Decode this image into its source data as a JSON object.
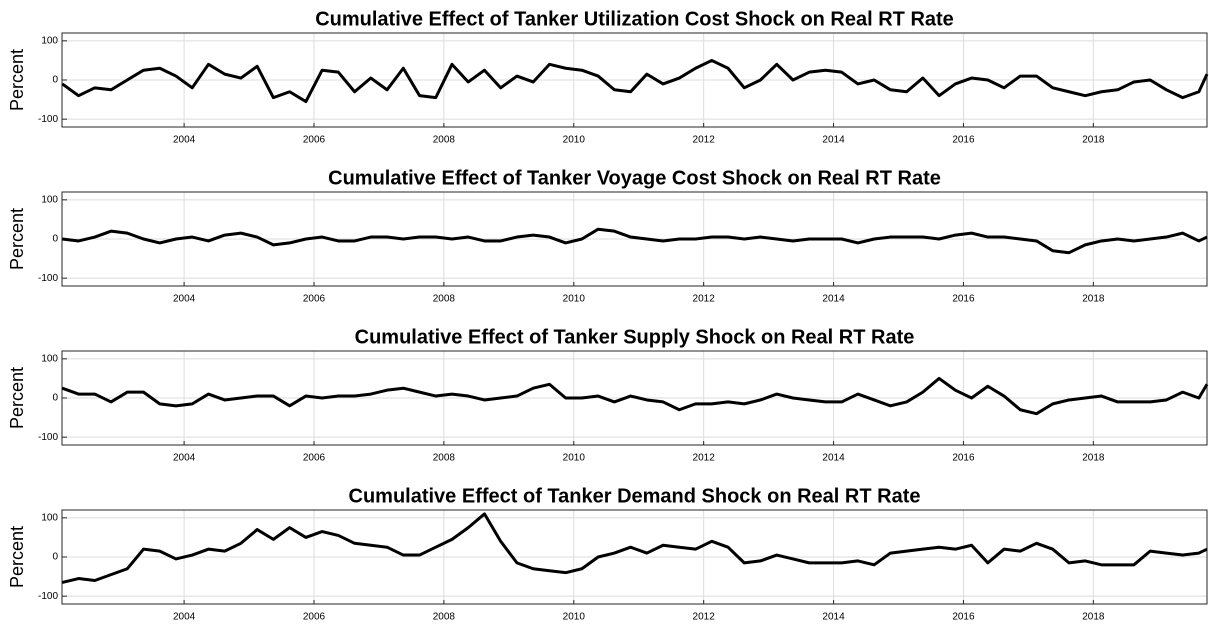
{
  "chart_data": [
    {
      "type": "line",
      "title": "Cumulative Effect of Tanker Utilization Cost Shock on Real RT Rate",
      "ylabel": "Percent",
      "x": [
        2002.125,
        2002.375,
        2002.625,
        2002.875,
        2003.125,
        2003.375,
        2003.625,
        2003.875,
        2004.125,
        2004.375,
        2004.625,
        2004.875,
        2005.125,
        2005.375,
        2005.625,
        2005.875,
        2006.125,
        2006.375,
        2006.625,
        2006.875,
        2007.125,
        2007.375,
        2007.625,
        2007.875,
        2008.125,
        2008.375,
        2008.625,
        2008.875,
        2009.125,
        2009.375,
        2009.625,
        2009.875,
        2010.125,
        2010.375,
        2010.625,
        2010.875,
        2011.125,
        2011.375,
        2011.625,
        2011.875,
        2012.125,
        2012.375,
        2012.625,
        2012.875,
        2013.125,
        2013.375,
        2013.625,
        2013.875,
        2014.125,
        2014.375,
        2014.625,
        2014.875,
        2015.125,
        2015.375,
        2015.625,
        2015.875,
        2016.125,
        2016.375,
        2016.625,
        2016.875,
        2017.125,
        2017.375,
        2017.625,
        2017.875,
        2018.125,
        2018.375,
        2018.625,
        2018.875,
        2019.125,
        2019.375,
        2019.625,
        2019.75
      ],
      "series": [
        {
          "name": "Utilization",
          "color": "#000000",
          "values": [
            -10,
            -40,
            -20,
            -25,
            0,
            25,
            30,
            10,
            -20,
            40,
            15,
            5,
            35,
            -45,
            -30,
            -55,
            25,
            20,
            -30,
            5,
            -25,
            30,
            -40,
            -45,
            40,
            -5,
            25,
            -20,
            10,
            -5,
            40,
            30,
            25,
            10,
            -25,
            -30,
            15,
            -10,
            5,
            30,
            50,
            30,
            -20,
            0,
            40,
            0,
            20,
            25,
            20,
            -10,
            0,
            -25,
            -30,
            5,
            -40,
            -10,
            5,
            0,
            -20,
            10,
            10,
            -20,
            -30,
            -40,
            -30,
            -25,
            -5,
            0,
            -25,
            -45,
            -30,
            15
          ]
        }
      ],
      "xlim": [
        2002.12,
        2019.75
      ],
      "xticks": [
        2004,
        2006,
        2008,
        2010,
        2012,
        2014,
        2016,
        2018
      ],
      "ylim": [
        -120,
        120
      ],
      "yticks": [
        -100,
        0,
        100
      ],
      "grid": true
    },
    {
      "type": "line",
      "title": "Cumulative Effect of Tanker Voyage Cost Shock on Real RT Rate",
      "ylabel": "Percent",
      "x": [
        2002.125,
        2002.375,
        2002.625,
        2002.875,
        2003.125,
        2003.375,
        2003.625,
        2003.875,
        2004.125,
        2004.375,
        2004.625,
        2004.875,
        2005.125,
        2005.375,
        2005.625,
        2005.875,
        2006.125,
        2006.375,
        2006.625,
        2006.875,
        2007.125,
        2007.375,
        2007.625,
        2007.875,
        2008.125,
        2008.375,
        2008.625,
        2008.875,
        2009.125,
        2009.375,
        2009.625,
        2009.875,
        2010.125,
        2010.375,
        2010.625,
        2010.875,
        2011.125,
        2011.375,
        2011.625,
        2011.875,
        2012.125,
        2012.375,
        2012.625,
        2012.875,
        2013.125,
        2013.375,
        2013.625,
        2013.875,
        2014.125,
        2014.375,
        2014.625,
        2014.875,
        2015.125,
        2015.375,
        2015.625,
        2015.875,
        2016.125,
        2016.375,
        2016.625,
        2016.875,
        2017.125,
        2017.375,
        2017.625,
        2017.875,
        2018.125,
        2018.375,
        2018.625,
        2018.875,
        2019.125,
        2019.375,
        2019.625,
        2019.75
      ],
      "series": [
        {
          "name": "Voyage",
          "color": "#000000",
          "values": [
            0,
            -5,
            5,
            20,
            15,
            0,
            -10,
            0,
            5,
            -5,
            10,
            15,
            5,
            -15,
            -10,
            0,
            5,
            -5,
            -5,
            5,
            5,
            0,
            5,
            5,
            0,
            5,
            -5,
            -5,
            5,
            10,
            5,
            -10,
            0,
            25,
            20,
            5,
            0,
            -5,
            0,
            0,
            5,
            5,
            0,
            5,
            0,
            -5,
            0,
            0,
            0,
            -10,
            0,
            5,
            5,
            5,
            0,
            10,
            15,
            5,
            5,
            0,
            -5,
            -30,
            -35,
            -15,
            -5,
            0,
            -5,
            0,
            5,
            15,
            -5,
            5
          ]
        }
      ],
      "xlim": [
        2002.12,
        2019.75
      ],
      "xticks": [
        2004,
        2006,
        2008,
        2010,
        2012,
        2014,
        2016,
        2018
      ],
      "ylim": [
        -120,
        120
      ],
      "yticks": [
        -100,
        0,
        100
      ],
      "grid": true
    },
    {
      "type": "line",
      "title": "Cumulative Effect of Tanker Supply Shock on Real RT Rate",
      "ylabel": "Percent",
      "x": [
        2002.125,
        2002.375,
        2002.625,
        2002.875,
        2003.125,
        2003.375,
        2003.625,
        2003.875,
        2004.125,
        2004.375,
        2004.625,
        2004.875,
        2005.125,
        2005.375,
        2005.625,
        2005.875,
        2006.125,
        2006.375,
        2006.625,
        2006.875,
        2007.125,
        2007.375,
        2007.625,
        2007.875,
        2008.125,
        2008.375,
        2008.625,
        2008.875,
        2009.125,
        2009.375,
        2009.625,
        2009.875,
        2010.125,
        2010.375,
        2010.625,
        2010.875,
        2011.125,
        2011.375,
        2011.625,
        2011.875,
        2012.125,
        2012.375,
        2012.625,
        2012.875,
        2013.125,
        2013.375,
        2013.625,
        2013.875,
        2014.125,
        2014.375,
        2014.625,
        2014.875,
        2015.125,
        2015.375,
        2015.625,
        2015.875,
        2016.125,
        2016.375,
        2016.625,
        2016.875,
        2017.125,
        2017.375,
        2017.625,
        2017.875,
        2018.125,
        2018.375,
        2018.625,
        2018.875,
        2019.125,
        2019.375,
        2019.625,
        2019.75
      ],
      "series": [
        {
          "name": "Supply",
          "color": "#000000",
          "values": [
            25,
            10,
            10,
            -10,
            15,
            15,
            -15,
            -20,
            -15,
            10,
            -5,
            0,
            5,
            5,
            -20,
            5,
            0,
            5,
            5,
            10,
            20,
            25,
            15,
            5,
            10,
            5,
            -5,
            0,
            5,
            25,
            35,
            0,
            0,
            5,
            -10,
            5,
            -5,
            -10,
            -30,
            -15,
            -15,
            -10,
            -15,
            -5,
            10,
            0,
            -5,
            -10,
            -10,
            10,
            -5,
            -20,
            -10,
            15,
            50,
            20,
            0,
            30,
            5,
            -30,
            -40,
            -15,
            -5,
            0,
            5,
            -10,
            -10,
            -10,
            -5,
            15,
            0,
            35
          ]
        }
      ],
      "xlim": [
        2002.12,
        2019.75
      ],
      "xticks": [
        2004,
        2006,
        2008,
        2010,
        2012,
        2014,
        2016,
        2018
      ],
      "ylim": [
        -120,
        120
      ],
      "yticks": [
        -100,
        0,
        100
      ],
      "grid": true
    },
    {
      "type": "line",
      "title": "Cumulative Effect of Tanker Demand Shock on Real RT Rate",
      "ylabel": "Percent",
      "x": [
        2002.125,
        2002.375,
        2002.625,
        2002.875,
        2003.125,
        2003.375,
        2003.625,
        2003.875,
        2004.125,
        2004.375,
        2004.625,
        2004.875,
        2005.125,
        2005.375,
        2005.625,
        2005.875,
        2006.125,
        2006.375,
        2006.625,
        2006.875,
        2007.125,
        2007.375,
        2007.625,
        2007.875,
        2008.125,
        2008.375,
        2008.625,
        2008.875,
        2009.125,
        2009.375,
        2009.625,
        2009.875,
        2010.125,
        2010.375,
        2010.625,
        2010.875,
        2011.125,
        2011.375,
        2011.625,
        2011.875,
        2012.125,
        2012.375,
        2012.625,
        2012.875,
        2013.125,
        2013.375,
        2013.625,
        2013.875,
        2014.125,
        2014.375,
        2014.625,
        2014.875,
        2015.125,
        2015.375,
        2015.625,
        2015.875,
        2016.125,
        2016.375,
        2016.625,
        2016.875,
        2017.125,
        2017.375,
        2017.625,
        2017.875,
        2018.125,
        2018.375,
        2018.625,
        2018.875,
        2019.125,
        2019.375,
        2019.625,
        2019.75
      ],
      "series": [
        {
          "name": "Demand",
          "color": "#000000",
          "values": [
            -65,
            -55,
            -60,
            -45,
            -30,
            20,
            15,
            -5,
            5,
            20,
            15,
            35,
            70,
            45,
            75,
            50,
            65,
            55,
            35,
            30,
            25,
            5,
            5,
            25,
            45,
            75,
            110,
            40,
            -15,
            -30,
            -35,
            -40,
            -30,
            0,
            10,
            25,
            10,
            30,
            25,
            20,
            40,
            25,
            -15,
            -10,
            5,
            -5,
            -15,
            -15,
            -15,
            -10,
            -20,
            10,
            15,
            20,
            25,
            20,
            30,
            -15,
            20,
            15,
            35,
            20,
            -15,
            -10,
            -20,
            -20,
            -20,
            15,
            10,
            5,
            10,
            20
          ]
        }
      ],
      "xlim": [
        2002.12,
        2019.75
      ],
      "xticks": [
        2004,
        2006,
        2008,
        2010,
        2012,
        2014,
        2016,
        2018
      ],
      "ylim": [
        -120,
        120
      ],
      "yticks": [
        -100,
        0,
        100
      ],
      "grid": true
    }
  ]
}
